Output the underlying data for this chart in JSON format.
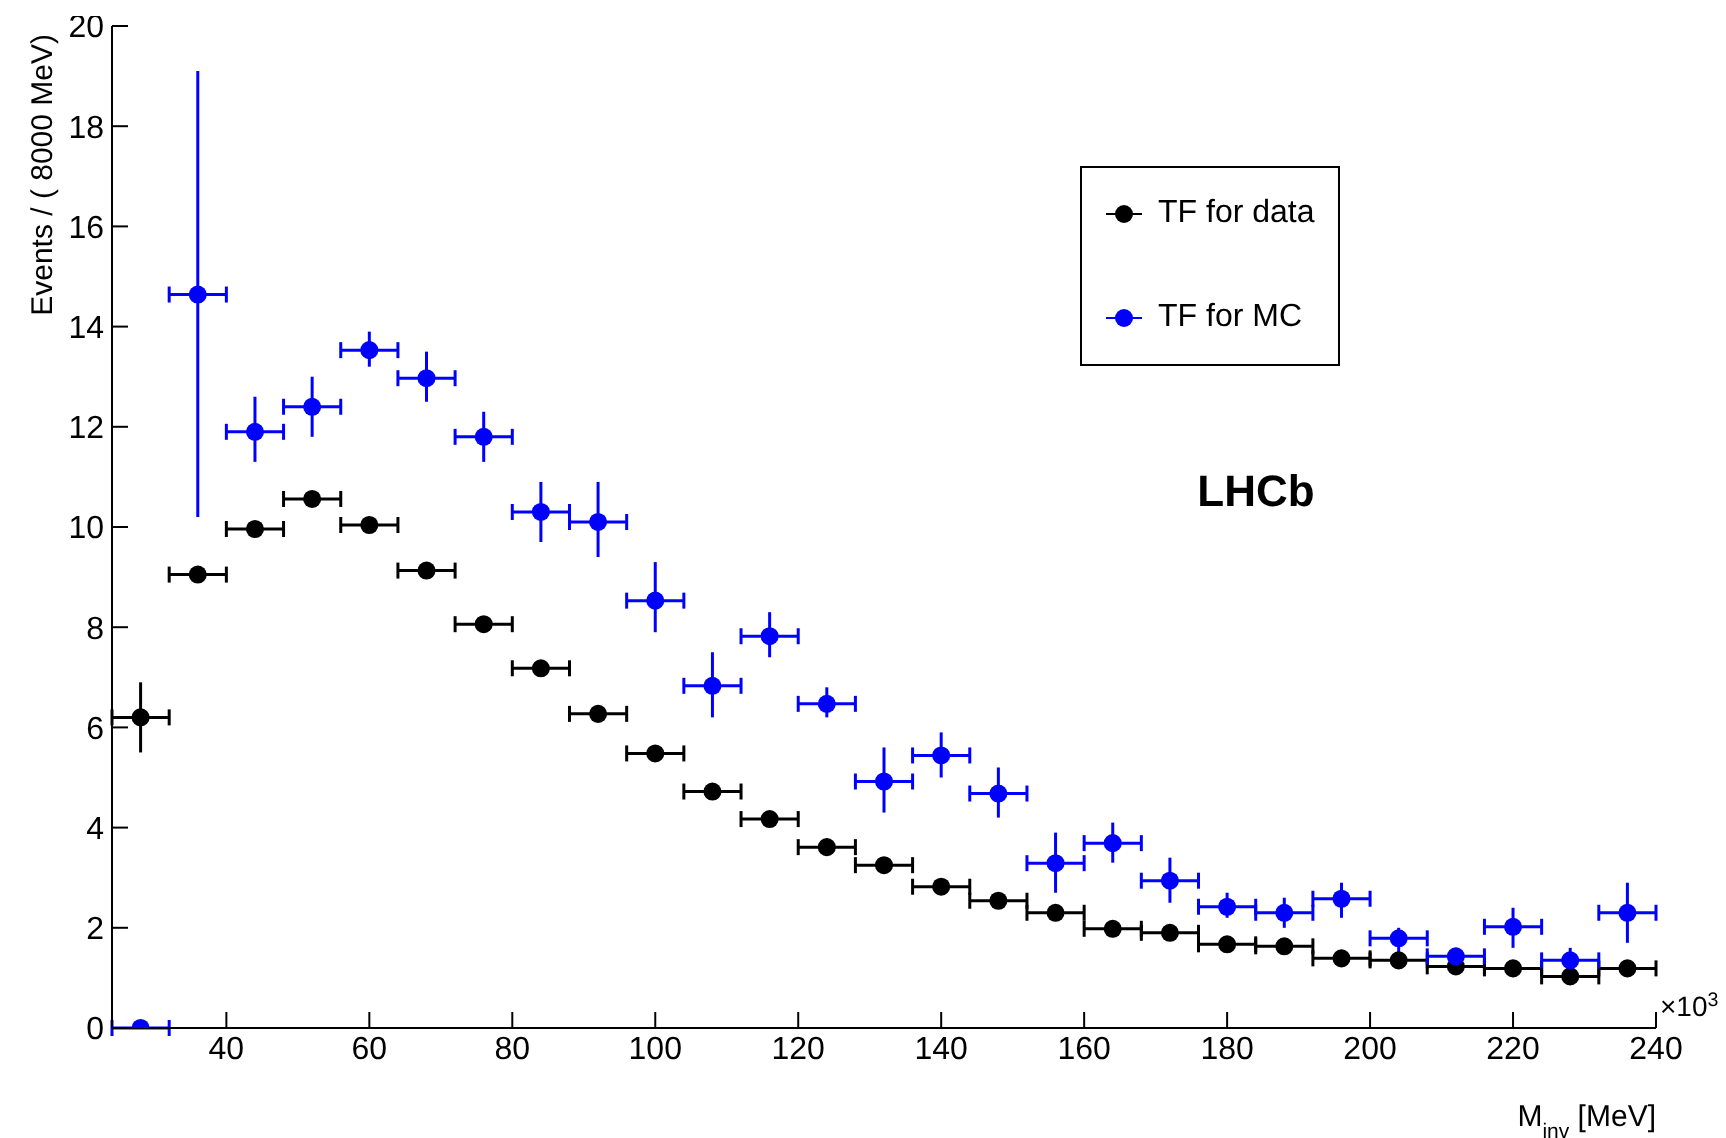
{
  "chart_data": {
    "type": "scatter",
    "xlabel": "M$_{inv}$ [MeV]",
    "ylabel": "Events / ( 8000 MeV)",
    "annotations": [
      "LHCb",
      "×10$^{3}$"
    ],
    "xlim": [
      24,
      240
    ],
    "xticks": [
      40,
      60,
      80,
      100,
      120,
      140,
      160,
      180,
      200,
      220,
      240
    ],
    "ylim": [
      0,
      20
    ],
    "yticks": [
      0,
      2,
      4,
      6,
      8,
      10,
      12,
      14,
      16,
      18,
      20
    ],
    "x": [
      28,
      36,
      44,
      52,
      60,
      68,
      76,
      84,
      92,
      100,
      108,
      116,
      124,
      132,
      140,
      148,
      156,
      164,
      172,
      180,
      188,
      196,
      204,
      212,
      220,
      228,
      236
    ],
    "grid": false,
    "legend": "top right",
    "marker": "circle",
    "series": [
      {
        "name": "TF for data",
        "color": "#000000",
        "values": [
          6.2,
          9.05,
          9.96,
          10.56,
          10.04,
          9.13,
          8.06,
          7.18,
          6.27,
          5.48,
          4.72,
          4.17,
          3.61,
          3.25,
          2.82,
          2.54,
          2.3,
          1.98,
          1.9,
          1.67,
          1.63,
          1.39,
          1.35,
          1.23,
          1.19,
          1.03,
          1.19
        ],
        "errors": [
          0.7,
          null,
          null,
          null,
          null,
          null,
          null,
          null,
          null,
          null,
          null,
          null,
          null,
          null,
          null,
          null,
          null,
          null,
          null,
          null,
          null,
          null,
          null,
          null,
          null,
          null,
          null
        ],
        "xerrors": [
          4,
          4,
          4,
          4,
          4,
          4,
          4,
          4,
          4,
          4,
          4,
          4,
          4,
          4,
          4,
          4,
          4,
          4,
          4,
          4,
          4,
          4,
          4,
          4,
          4,
          4,
          4
        ]
      },
      {
        "name": "TF for MC",
        "color": "#0000ff",
        "values": [
          0,
          14.64,
          11.9,
          12.4,
          13.53,
          12.97,
          11.8,
          10.3,
          10.1,
          8.53,
          6.83,
          7.82,
          6.47,
          4.92,
          5.44,
          4.68,
          3.29,
          3.69,
          2.94,
          2.42,
          2.3,
          2.58,
          1.79,
          1.43,
          2.02,
          1.35,
          2.3
        ],
        "errors": [
          null,
          [
            10.2,
            19.1
          ],
          [
            11.3,
            12.6
          ],
          [
            11.8,
            13.0
          ],
          [
            13.2,
            13.9
          ],
          [
            12.5,
            13.5
          ],
          [
            11.3,
            12.3
          ],
          [
            9.7,
            10.9
          ],
          [
            9.4,
            10.9
          ],
          [
            7.9,
            9.3
          ],
          [
            6.2,
            7.5
          ],
          [
            7.4,
            8.3
          ],
          [
            6.2,
            6.8
          ],
          [
            4.3,
            5.6
          ],
          [
            5.0,
            5.9
          ],
          [
            4.2,
            5.2
          ],
          [
            2.7,
            3.9
          ],
          [
            3.3,
            4.1
          ],
          [
            2.5,
            3.4
          ],
          [
            2.2,
            2.7
          ],
          [
            2.0,
            2.6
          ],
          [
            2.2,
            2.9
          ],
          [
            1.5,
            2.0
          ],
          [
            1.3,
            1.6
          ],
          [
            1.6,
            2.4
          ],
          [
            1.1,
            1.6
          ],
          [
            1.7,
            2.9
          ]
        ],
        "xerrors": [
          4,
          4,
          4,
          4,
          4,
          4,
          4,
          4,
          4,
          4,
          4,
          4,
          4,
          4,
          4,
          4,
          4,
          4,
          4,
          4,
          4,
          4,
          4,
          4,
          4,
          4,
          4
        ]
      }
    ]
  }
}
